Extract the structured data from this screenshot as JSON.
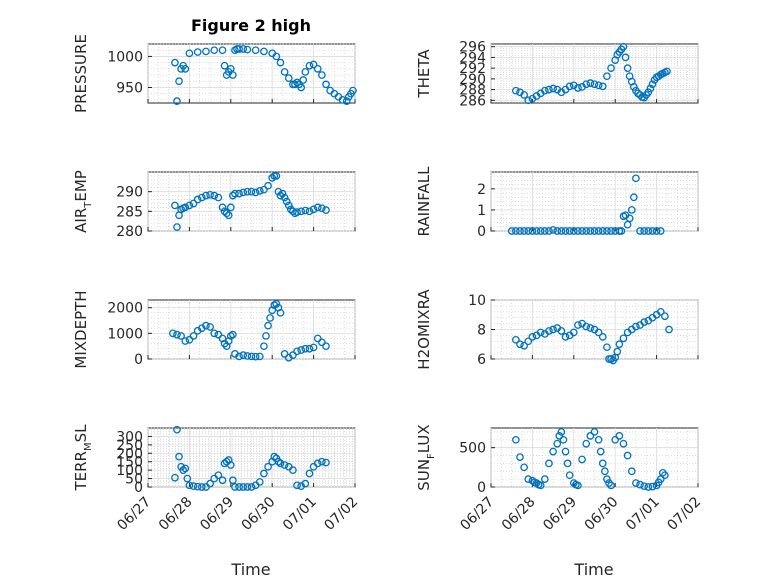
{
  "chart_data": [
    {
      "type": "scatter",
      "id": "pressure",
      "title": "Figure 2 high",
      "ylabel": "PRESSURE",
      "ylim": [
        925,
        1020
      ],
      "yticks": [
        "950",
        "1000"
      ],
      "ytick_values": [
        950,
        1000
      ],
      "x": [
        0.65,
        0.7,
        0.75,
        0.8,
        0.85,
        0.9,
        1.0,
        1.2,
        1.4,
        1.6,
        1.8,
        1.85,
        1.9,
        1.95,
        2.0,
        2.05,
        2.1,
        2.15,
        2.2,
        2.3,
        2.4,
        2.6,
        2.8,
        3.0,
        3.1,
        3.2,
        3.3,
        3.4,
        3.5,
        3.55,
        3.6,
        3.65,
        3.7,
        3.75,
        3.8,
        3.9,
        4.0,
        4.1,
        4.2,
        4.3,
        4.4,
        4.5,
        4.6,
        4.7,
        4.8,
        4.85,
        4.9,
        4.95
      ],
      "y": [
        990,
        928,
        960,
        980,
        985,
        980,
        1005,
        1007,
        1008,
        1010,
        1010,
        985,
        970,
        975,
        980,
        970,
        1010,
        1012,
        1012,
        1012,
        1011,
        1010,
        1008,
        1005,
        1000,
        990,
        975,
        965,
        955,
        955,
        958,
        955,
        950,
        962,
        975,
        985,
        987,
        980,
        970,
        955,
        945,
        940,
        935,
        930,
        928,
        935,
        940,
        945
      ]
    },
    {
      "type": "scatter",
      "id": "theta",
      "title": "",
      "ylabel": "THETA",
      "ylim": [
        285.5,
        296.5
      ],
      "yticks": [
        "286",
        "288",
        "290",
        "292",
        "294",
        "296"
      ],
      "ytick_values": [
        286,
        288,
        290,
        292,
        294,
        296
      ],
      "x": [
        0.6,
        0.7,
        0.8,
        0.9,
        1.0,
        1.1,
        1.2,
        1.3,
        1.4,
        1.5,
        1.6,
        1.7,
        1.8,
        1.9,
        2.0,
        2.1,
        2.2,
        2.3,
        2.4,
        2.5,
        2.6,
        2.7,
        2.8,
        2.9,
        3.0,
        3.05,
        3.1,
        3.15,
        3.2,
        3.25,
        3.3,
        3.35,
        3.4,
        3.45,
        3.5,
        3.55,
        3.6,
        3.65,
        3.7,
        3.75,
        3.8,
        3.85,
        3.9,
        3.95,
        4.0,
        4.05,
        4.1,
        4.15,
        4.2,
        4.25
      ],
      "y": [
        287.8,
        287.5,
        287.0,
        286.0,
        286.3,
        286.8,
        287.3,
        287.8,
        288.0,
        288.2,
        288.0,
        287.5,
        288.0,
        288.6,
        288.8,
        288.3,
        288.5,
        289.0,
        289.2,
        289.0,
        288.8,
        288.6,
        290.5,
        292.0,
        293.5,
        294.5,
        295.0,
        295.5,
        296.0,
        294.0,
        292.0,
        290.5,
        289.5,
        288.5,
        287.8,
        287.3,
        287.0,
        286.6,
        286.5,
        287.0,
        287.5,
        288.2,
        289.0,
        289.8,
        290.3,
        290.5,
        290.8,
        291.0,
        291.2,
        291.4
      ]
    },
    {
      "type": "scatter",
      "id": "air_temp",
      "title": "",
      "ylabel": "AIRTEMP",
      "ylim": [
        280,
        295
      ],
      "yticks": [
        "280",
        "285",
        "290"
      ],
      "ytick_values": [
        280,
        285,
        290
      ],
      "x": [
        0.65,
        0.7,
        0.75,
        0.8,
        0.85,
        0.9,
        1.0,
        1.1,
        1.2,
        1.3,
        1.4,
        1.5,
        1.6,
        1.7,
        1.8,
        1.85,
        1.9,
        1.95,
        2.0,
        2.05,
        2.1,
        2.2,
        2.3,
        2.4,
        2.5,
        2.6,
        2.7,
        2.8,
        2.9,
        3.0,
        3.05,
        3.1,
        3.15,
        3.2,
        3.25,
        3.3,
        3.35,
        3.4,
        3.45,
        3.5,
        3.55,
        3.6,
        3.7,
        3.8,
        3.9,
        4.0,
        4.1,
        4.2,
        4.3
      ],
      "y": [
        286.5,
        281.0,
        284.0,
        285.5,
        285.8,
        286.0,
        286.5,
        287.0,
        288.0,
        288.5,
        289.0,
        289.2,
        289.0,
        288.5,
        286.0,
        285.0,
        284.5,
        284.0,
        286.0,
        289.0,
        289.5,
        289.5,
        289.8,
        290.0,
        290.0,
        289.8,
        290.2,
        290.5,
        291.5,
        293.5,
        294.0,
        294.0,
        290.0,
        289.0,
        289.5,
        288.5,
        287.5,
        286.5,
        285.5,
        285.0,
        284.5,
        284.8,
        285.0,
        285.2,
        285.0,
        285.5,
        286.0,
        285.8,
        285.3
      ]
    },
    {
      "type": "scatter",
      "id": "rainfall",
      "title": "",
      "ylabel": "RAINFALL",
      "ylim": [
        0,
        2.8
      ],
      "yticks": [
        "0",
        "1",
        "2"
      ],
      "ytick_values": [
        0,
        1,
        2
      ],
      "x": [
        0.5,
        0.6,
        0.7,
        0.8,
        0.9,
        1.0,
        1.1,
        1.2,
        1.3,
        1.4,
        1.5,
        1.6,
        1.7,
        1.8,
        1.9,
        2.0,
        2.1,
        2.2,
        2.3,
        2.4,
        2.5,
        2.6,
        2.7,
        2.8,
        2.9,
        3.0,
        3.1,
        3.15,
        3.2,
        3.25,
        3.3,
        3.35,
        3.4,
        3.45,
        3.5,
        3.6,
        3.7,
        3.8,
        3.9,
        4.0,
        4.1
      ],
      "y": [
        0,
        0,
        0,
        0,
        0,
        0,
        0,
        0,
        0,
        0,
        0.05,
        0,
        0,
        0,
        0,
        0,
        0,
        0,
        0,
        0,
        0,
        0,
        0,
        0,
        0,
        0,
        0,
        0,
        0.7,
        0.75,
        0.3,
        0.6,
        1.0,
        1.6,
        2.5,
        0,
        0,
        0,
        0,
        0,
        0
      ]
    },
    {
      "type": "scatter",
      "id": "mixdepth",
      "title": "",
      "ylabel": "MIXDEPTH",
      "ylim": [
        0,
        2300
      ],
      "yticks": [
        "0",
        "1000",
        "2000"
      ],
      "ytick_values": [
        0,
        1000,
        2000
      ],
      "x": [
        0.6,
        0.7,
        0.8,
        0.9,
        1.0,
        1.1,
        1.2,
        1.3,
        1.4,
        1.5,
        1.6,
        1.7,
        1.8,
        1.85,
        1.9,
        1.95,
        2.0,
        2.05,
        2.1,
        2.2,
        2.3,
        2.4,
        2.5,
        2.6,
        2.7,
        2.8,
        2.85,
        2.9,
        2.95,
        3.0,
        3.05,
        3.1,
        3.15,
        3.2,
        3.3,
        3.4,
        3.5,
        3.6,
        3.7,
        3.8,
        3.9,
        4.0,
        4.1,
        4.2,
        4.3
      ],
      "y": [
        1000,
        950,
        900,
        700,
        750,
        900,
        1100,
        1200,
        1300,
        1250,
        1000,
        950,
        800,
        600,
        500,
        700,
        900,
        950,
        200,
        100,
        150,
        120,
        100,
        90,
        100,
        500,
        900,
        1300,
        1600,
        1900,
        2100,
        2150,
        2000,
        1800,
        200,
        50,
        150,
        300,
        350,
        400,
        400,
        450,
        800,
        650,
        500
      ]
    },
    {
      "type": "scatter",
      "id": "h2omixra",
      "title": "",
      "ylabel": "H2OMIXRA",
      "ylim": [
        6,
        10
      ],
      "yticks": [
        "6",
        "8",
        "10"
      ],
      "ytick_values": [
        6,
        8,
        10
      ],
      "x": [
        0.6,
        0.7,
        0.8,
        0.9,
        1.0,
        1.1,
        1.2,
        1.3,
        1.4,
        1.5,
        1.6,
        1.7,
        1.8,
        1.9,
        2.0,
        2.1,
        2.2,
        2.3,
        2.4,
        2.5,
        2.6,
        2.7,
        2.8,
        2.85,
        2.9,
        2.95,
        3.0,
        3.05,
        3.1,
        3.2,
        3.3,
        3.4,
        3.5,
        3.6,
        3.7,
        3.8,
        3.9,
        4.0,
        4.1,
        4.2,
        4.3
      ],
      "y": [
        7.3,
        7.0,
        6.9,
        7.2,
        7.5,
        7.6,
        7.8,
        7.7,
        7.9,
        8.0,
        8.1,
        7.9,
        7.5,
        7.6,
        7.8,
        8.3,
        8.4,
        8.2,
        8.1,
        8.0,
        7.8,
        7.5,
        6.8,
        6.0,
        6.0,
        5.9,
        6.1,
        6.5,
        7.0,
        7.4,
        7.8,
        8.0,
        8.2,
        8.3,
        8.5,
        8.6,
        8.8,
        9.0,
        9.2,
        8.9,
        8.0
      ]
    },
    {
      "type": "scatter",
      "id": "terr_msl",
      "title": "",
      "ylabel": "TERRMSL",
      "ylim": [
        0,
        350
      ],
      "yticks": [
        "0",
        "50",
        "100",
        "150",
        "200",
        "250",
        "300"
      ],
      "ytick_values": [
        0,
        50,
        100,
        150,
        200,
        250,
        300
      ],
      "x": [
        0.65,
        0.7,
        0.75,
        0.8,
        0.85,
        0.9,
        0.95,
        1.0,
        1.1,
        1.2,
        1.3,
        1.4,
        1.5,
        1.6,
        1.7,
        1.8,
        1.85,
        1.9,
        1.95,
        2.0,
        2.05,
        2.1,
        2.2,
        2.3,
        2.4,
        2.5,
        2.6,
        2.7,
        2.8,
        2.9,
        3.0,
        3.05,
        3.1,
        3.15,
        3.2,
        3.3,
        3.4,
        3.5,
        3.6,
        3.7,
        3.8,
        3.9,
        4.0,
        4.1,
        4.2,
        4.3
      ],
      "y": [
        55,
        340,
        180,
        120,
        100,
        110,
        50,
        10,
        5,
        2,
        0,
        0,
        20,
        50,
        70,
        40,
        140,
        150,
        160,
        130,
        40,
        0,
        0,
        0,
        0,
        0,
        10,
        30,
        80,
        120,
        150,
        180,
        170,
        150,
        140,
        130,
        120,
        100,
        10,
        5,
        20,
        80,
        120,
        140,
        150,
        145
      ]
    },
    {
      "type": "scatter",
      "id": "sun_flux",
      "title": "",
      "ylabel": "SUNFLUX",
      "ylim": [
        0,
        750
      ],
      "yticks": [
        "0",
        "500"
      ],
      "ytick_values": [
        0,
        500
      ],
      "x": [
        0.6,
        0.7,
        0.8,
        0.9,
        1.0,
        1.05,
        1.1,
        1.15,
        1.2,
        1.3,
        1.4,
        1.5,
        1.6,
        1.65,
        1.7,
        1.75,
        1.8,
        1.85,
        1.9,
        2.0,
        2.05,
        2.1,
        2.2,
        2.3,
        2.4,
        2.5,
        2.6,
        2.65,
        2.7,
        2.75,
        2.8,
        2.85,
        2.9,
        3.0,
        3.1,
        3.2,
        3.3,
        3.4,
        3.5,
        3.6,
        3.7,
        3.8,
        3.9,
        4.0,
        4.05,
        4.1,
        4.15,
        4.2
      ],
      "y": [
        600,
        380,
        250,
        100,
        80,
        60,
        50,
        30,
        20,
        100,
        300,
        450,
        550,
        650,
        700,
        600,
        450,
        300,
        150,
        50,
        30,
        20,
        350,
        550,
        650,
        700,
        600,
        450,
        300,
        200,
        100,
        50,
        20,
        600,
        650,
        550,
        400,
        200,
        50,
        30,
        10,
        0,
        5,
        20,
        60,
        100,
        180,
        150
      ]
    }
  ],
  "xaxis": {
    "xlim": [
      0,
      5
    ],
    "tick_values": [
      0,
      1,
      2,
      3,
      4,
      5
    ],
    "tick_labels": [
      "06/27",
      "06/28",
      "06/29",
      "06/30",
      "07/01",
      "07/02"
    ],
    "xlabel": "Time"
  },
  "colors": {
    "marker": "#0072BD",
    "axis": "#262626"
  }
}
